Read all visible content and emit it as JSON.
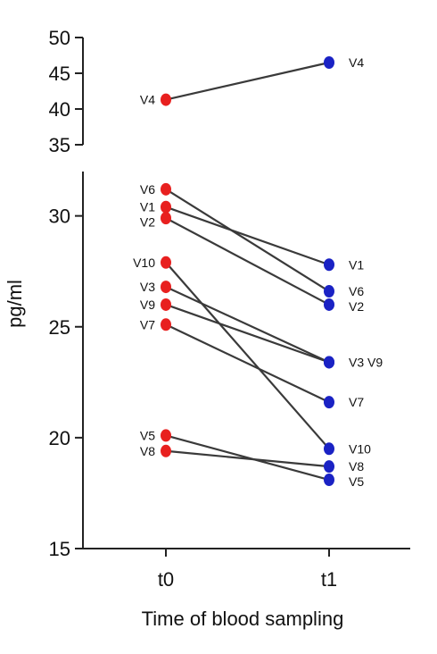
{
  "chart_data": {
    "type": "line",
    "title": "",
    "xlabel": "Time of blood sampling",
    "ylabel": "pg/ml",
    "categories": [
      "t0",
      "t1"
    ],
    "y_axis_broken": true,
    "panels": [
      {
        "name": "upper",
        "ylim": [
          35,
          50
        ],
        "ticks": [
          35,
          40,
          45,
          50
        ]
      },
      {
        "name": "lower",
        "ylim": [
          15,
          32
        ],
        "ticks": [
          15,
          20,
          25,
          30
        ]
      }
    ],
    "colors": {
      "t0": "#e8201f",
      "t1": "#1a22c4",
      "line": "#3a3a3a"
    },
    "series": [
      {
        "name": "V4",
        "values": [
          41.3,
          46.5
        ],
        "panel": "upper"
      },
      {
        "name": "V6",
        "values": [
          31.2,
          26.6
        ],
        "panel": "lower"
      },
      {
        "name": "V1",
        "values": [
          30.4,
          27.8
        ],
        "panel": "lower"
      },
      {
        "name": "V2",
        "values": [
          29.9,
          26.0
        ],
        "panel": "lower"
      },
      {
        "name": "V10",
        "values": [
          27.9,
          19.5
        ],
        "panel": "lower"
      },
      {
        "name": "V3",
        "values": [
          26.8,
          23.4
        ],
        "panel": "lower"
      },
      {
        "name": "V9",
        "values": [
          26.0,
          23.4
        ],
        "panel": "lower"
      },
      {
        "name": "V7",
        "values": [
          25.1,
          21.6
        ],
        "panel": "lower"
      },
      {
        "name": "V5",
        "values": [
          20.1,
          18.1
        ],
        "panel": "lower"
      },
      {
        "name": "V8",
        "values": [
          19.4,
          18.7
        ],
        "panel": "lower"
      }
    ],
    "labels_t0": [
      "V4",
      "V6",
      "V1",
      "V2",
      "V10",
      "V3",
      "V9",
      "V7",
      "V5",
      "V8"
    ],
    "labels_t1": [
      "V4",
      "V1",
      "V6",
      "V2",
      "V3 V9",
      "V7",
      "V10",
      "V8",
      "V5"
    ]
  }
}
